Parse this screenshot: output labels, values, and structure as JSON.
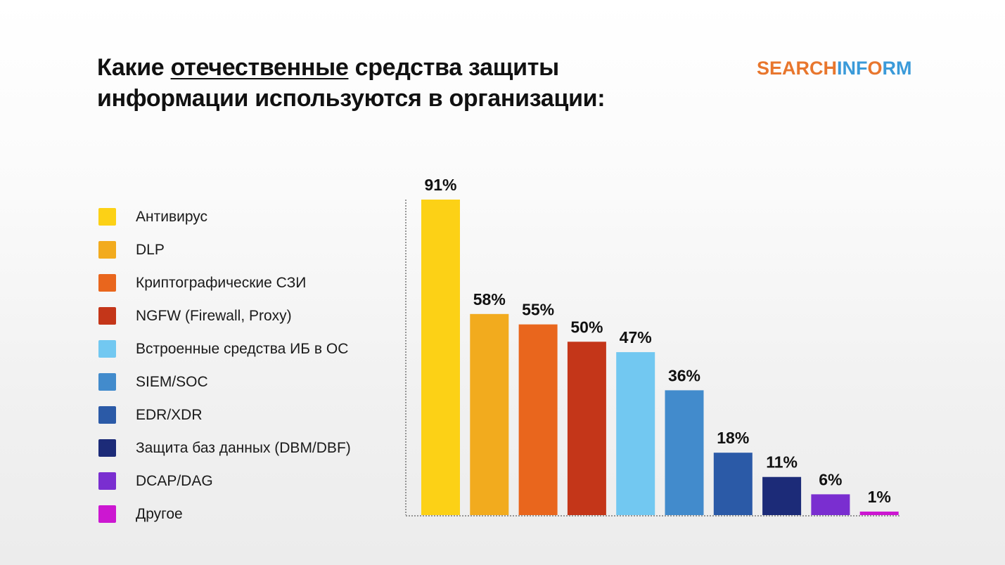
{
  "title": {
    "before": "Какие ",
    "underlined": "отечественные",
    "after": " средства защиты",
    "line2": "информации используются в организации:"
  },
  "logo": {
    "part1": "SEARCH",
    "part2": "INF",
    "part3": "O",
    "part4": "RM",
    "colors": {
      "orange": "#e8762d",
      "blue": "#3a9ad9"
    }
  },
  "chart_data": {
    "type": "bar",
    "title": "Какие отечественные средства защиты информации используются в организации:",
    "categories": [
      "Антивирус",
      "DLP",
      "Криптографические СЗИ",
      "NGFW (Firewall, Proxy)",
      "Встроенные средства ИБ в ОС",
      "SIEM/SOC",
      "EDR/XDR",
      "Защита баз данных (DBM/DBF)",
      "DCAP/DAG",
      "Другое"
    ],
    "values": [
      91,
      58,
      55,
      50,
      47,
      36,
      18,
      11,
      6,
      1
    ],
    "labels": [
      "91%",
      "58%",
      "55%",
      "50%",
      "47%",
      "36%",
      "18%",
      "11%",
      "6%",
      "1%"
    ],
    "colors": [
      "#fcd116",
      "#f2ab1e",
      "#e9661d",
      "#c43619",
      "#72c8f1",
      "#428bcc",
      "#2b5aa7",
      "#1c2b78",
      "#7a2ed0",
      "#cc17d1"
    ],
    "unit": "%",
    "ylim": [
      0,
      91
    ],
    "grid": false,
    "legend": "left"
  }
}
